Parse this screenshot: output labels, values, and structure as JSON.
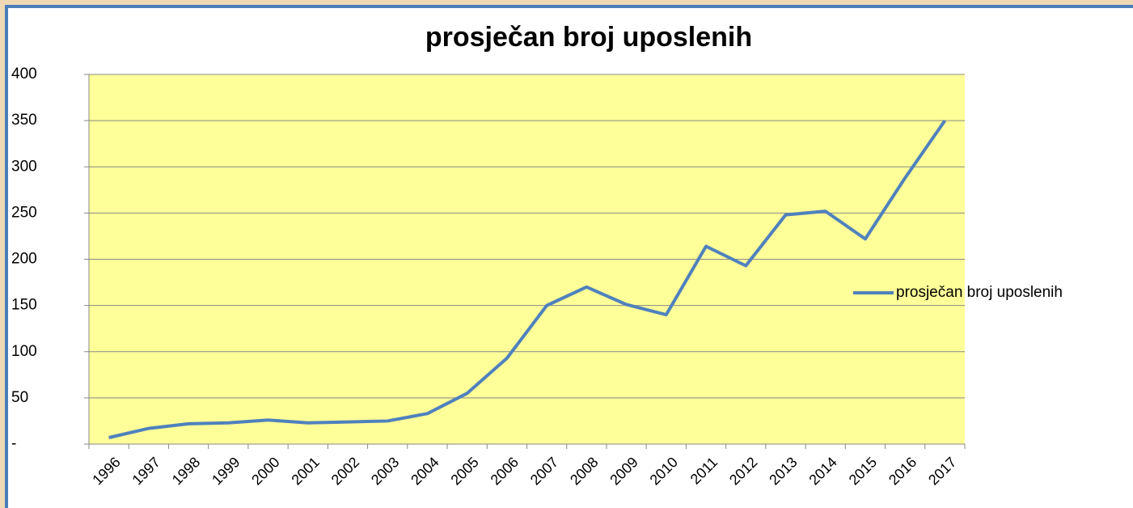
{
  "chart_data": {
    "type": "line",
    "title": "prosječan broj uposlenih",
    "categories": [
      "1996",
      "1997",
      "1998",
      "1999",
      "2000",
      "2001",
      "2002",
      "2003",
      "2004",
      "2005",
      "2006",
      "2007",
      "2008",
      "2009",
      "2010",
      "2011",
      "2012",
      "2013",
      "2014",
      "2015",
      "2016",
      "2017"
    ],
    "series": [
      {
        "name": "prosječan broj uposlenih",
        "color": "#4f81bd",
        "values": [
          7,
          17,
          22,
          23,
          26,
          23,
          24,
          25,
          33,
          55,
          93,
          150,
          170,
          151,
          140,
          214,
          193,
          248,
          252,
          222,
          288,
          350
        ]
      }
    ],
    "ylim": [
      0,
      400
    ],
    "yticks": [
      {
        "value": 0,
        "label": "-"
      },
      50,
      100,
      150,
      200,
      250,
      300,
      350,
      400
    ],
    "grid": true,
    "legend": "right",
    "plot_background": "#ffff99"
  }
}
